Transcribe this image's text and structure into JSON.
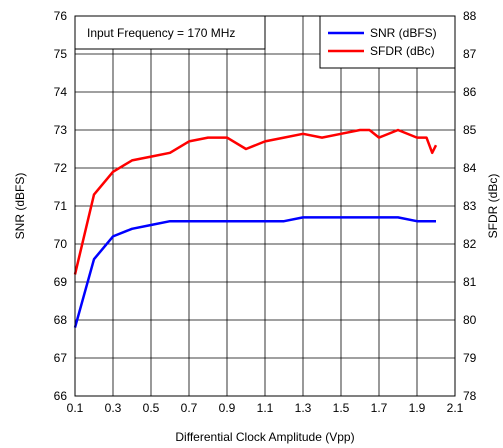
{
  "chart_data": {
    "type": "line",
    "title": "",
    "xlabel": "Differential Clock Amplitude (Vpp)",
    "ylabel": "SNR (dBFS)",
    "y2label": "SFDR (dBc)",
    "xlim": [
      0.1,
      2.1
    ],
    "ylim": [
      66,
      76
    ],
    "y2lim": [
      78,
      88
    ],
    "xticks": [
      0.1,
      0.3,
      0.5,
      0.7,
      0.9,
      1.1,
      1.3,
      1.5,
      1.7,
      1.9,
      2.1
    ],
    "xtick_labels": [
      "0.1",
      "0.3",
      "0.5",
      "0.7",
      "0.9",
      "1.1",
      "1.3",
      "1.5",
      "1.7",
      "1.9",
      "2.1"
    ],
    "yticks": [
      66,
      67,
      68,
      69,
      70,
      71,
      72,
      73,
      74,
      75,
      76
    ],
    "ytick_labels": [
      "66",
      "67",
      "68",
      "69",
      "70",
      "71",
      "72",
      "73",
      "74",
      "75",
      "76"
    ],
    "y2ticks": [
      78,
      79,
      80,
      81,
      82,
      83,
      84,
      85,
      86,
      87,
      88
    ],
    "y2tick_labels": [
      "78",
      "79",
      "80",
      "81",
      "82",
      "83",
      "84",
      "85",
      "86",
      "87",
      "88"
    ],
    "grid": true,
    "legend_position": "top-right",
    "annotation": "Input Frequency = 170 MHz",
    "series": [
      {
        "name": "SNR (dBFS)",
        "axis": "left",
        "color": "#0000ff",
        "x": [
          0.1,
          0.2,
          0.3,
          0.4,
          0.5,
          0.6,
          0.7,
          0.8,
          0.9,
          1.0,
          1.1,
          1.2,
          1.3,
          1.4,
          1.5,
          1.6,
          1.7,
          1.8,
          1.9,
          2.0
        ],
        "y": [
          67.8,
          69.6,
          70.2,
          70.4,
          70.5,
          70.6,
          70.6,
          70.6,
          70.6,
          70.6,
          70.6,
          70.6,
          70.7,
          70.7,
          70.7,
          70.7,
          70.7,
          70.7,
          70.6,
          70.6
        ]
      },
      {
        "name": "SFDR (dBc)",
        "axis": "right",
        "color": "#ff0000",
        "x": [
          0.1,
          0.2,
          0.3,
          0.4,
          0.5,
          0.6,
          0.7,
          0.8,
          0.9,
          1.0,
          1.1,
          1.2,
          1.3,
          1.4,
          1.5,
          1.6,
          1.65,
          1.7,
          1.8,
          1.9,
          1.95,
          1.98,
          2.0
        ],
        "y": [
          81.2,
          83.3,
          83.9,
          84.2,
          84.3,
          84.4,
          84.7,
          84.8,
          84.8,
          84.5,
          84.7,
          84.8,
          84.9,
          84.8,
          84.9,
          85.0,
          85.0,
          84.8,
          85.0,
          84.8,
          84.8,
          84.4,
          84.6
        ]
      }
    ]
  }
}
